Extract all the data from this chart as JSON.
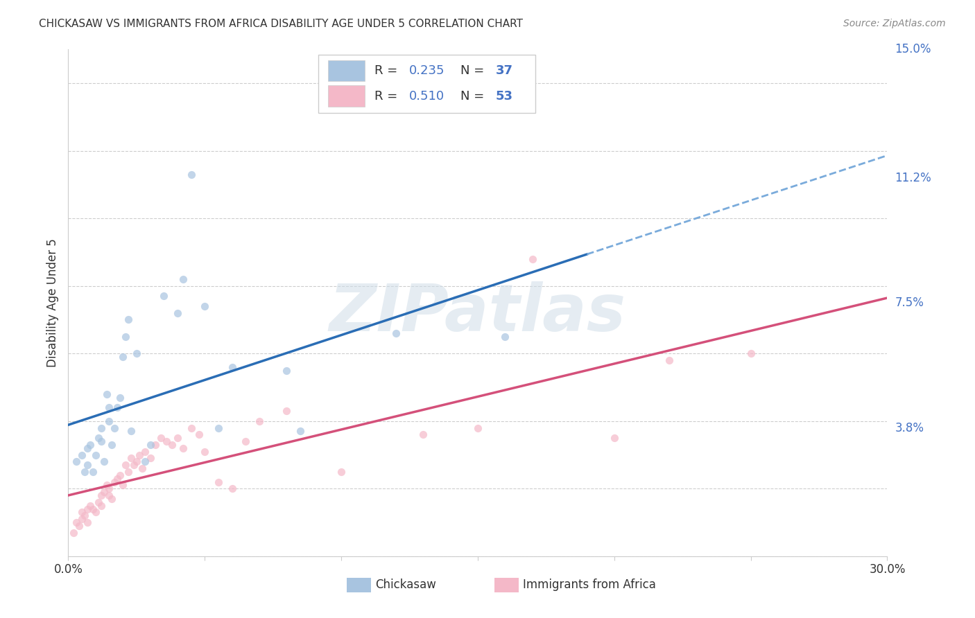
{
  "title": "CHICKASAW VS IMMIGRANTS FROM AFRICA DISABILITY AGE UNDER 5 CORRELATION CHART",
  "source": "Source: ZipAtlas.com",
  "ylabel": "Disability Age Under 5",
  "xlim": [
    0.0,
    0.3
  ],
  "ylim": [
    0.0,
    0.15
  ],
  "xticks": [
    0.0,
    0.05,
    0.1,
    0.15,
    0.2,
    0.25,
    0.3
  ],
  "xtick_labels": [
    "0.0%",
    "",
    "",
    "",
    "",
    "",
    "30.0%"
  ],
  "ytick_positions": [
    0.0,
    0.038,
    0.075,
    0.112,
    0.15
  ],
  "ytick_labels": [
    "",
    "3.8%",
    "7.5%",
    "11.2%",
    "15.0%"
  ],
  "background_color": "#ffffff",
  "grid_color": "#c8c8c8",
  "watermark": "ZIPatlas",
  "blue_R": 0.235,
  "blue_N": 37,
  "pink_R": 0.51,
  "pink_N": 53,
  "blue_color": "#a8c4e0",
  "pink_color": "#f4b8c8",
  "blue_line_color": "#2a6db5",
  "pink_line_color": "#d4507a",
  "blue_dash_color": "#7aabdb",
  "label_color": "#4472c4",
  "text_color": "#333333",
  "source_color": "#888888",
  "blue_scatter_x": [
    0.003,
    0.005,
    0.006,
    0.007,
    0.007,
    0.008,
    0.009,
    0.01,
    0.011,
    0.012,
    0.012,
    0.013,
    0.014,
    0.015,
    0.015,
    0.016,
    0.017,
    0.018,
    0.019,
    0.02,
    0.021,
    0.022,
    0.023,
    0.025,
    0.028,
    0.03,
    0.035,
    0.04,
    0.042,
    0.05,
    0.055,
    0.06,
    0.08,
    0.085,
    0.12,
    0.16,
    0.045
  ],
  "blue_scatter_y": [
    0.028,
    0.03,
    0.025,
    0.032,
    0.027,
    0.033,
    0.025,
    0.03,
    0.035,
    0.038,
    0.034,
    0.028,
    0.048,
    0.044,
    0.04,
    0.033,
    0.038,
    0.044,
    0.047,
    0.059,
    0.065,
    0.07,
    0.037,
    0.06,
    0.028,
    0.033,
    0.077,
    0.072,
    0.082,
    0.074,
    0.038,
    0.056,
    0.055,
    0.037,
    0.066,
    0.065,
    0.113
  ],
  "pink_scatter_x": [
    0.002,
    0.003,
    0.004,
    0.005,
    0.005,
    0.006,
    0.007,
    0.007,
    0.008,
    0.009,
    0.01,
    0.011,
    0.012,
    0.012,
    0.013,
    0.014,
    0.015,
    0.015,
    0.016,
    0.017,
    0.018,
    0.019,
    0.02,
    0.021,
    0.022,
    0.023,
    0.024,
    0.025,
    0.026,
    0.027,
    0.028,
    0.03,
    0.032,
    0.034,
    0.036,
    0.038,
    0.04,
    0.042,
    0.045,
    0.048,
    0.05,
    0.055,
    0.06,
    0.065,
    0.07,
    0.08,
    0.1,
    0.13,
    0.15,
    0.2,
    0.22,
    0.25,
    0.17
  ],
  "pink_scatter_y": [
    0.007,
    0.01,
    0.009,
    0.011,
    0.013,
    0.012,
    0.01,
    0.014,
    0.015,
    0.014,
    0.013,
    0.016,
    0.015,
    0.018,
    0.019,
    0.021,
    0.018,
    0.02,
    0.017,
    0.022,
    0.023,
    0.024,
    0.021,
    0.027,
    0.025,
    0.029,
    0.027,
    0.028,
    0.03,
    0.026,
    0.031,
    0.029,
    0.033,
    0.035,
    0.034,
    0.033,
    0.035,
    0.032,
    0.038,
    0.036,
    0.031,
    0.022,
    0.02,
    0.034,
    0.04,
    0.043,
    0.025,
    0.036,
    0.038,
    0.035,
    0.058,
    0.06,
    0.088
  ],
  "blue_line_x_end_solid": 0.19,
  "pink_line_y_start": 0.004,
  "pink_line_y_end": 0.06
}
